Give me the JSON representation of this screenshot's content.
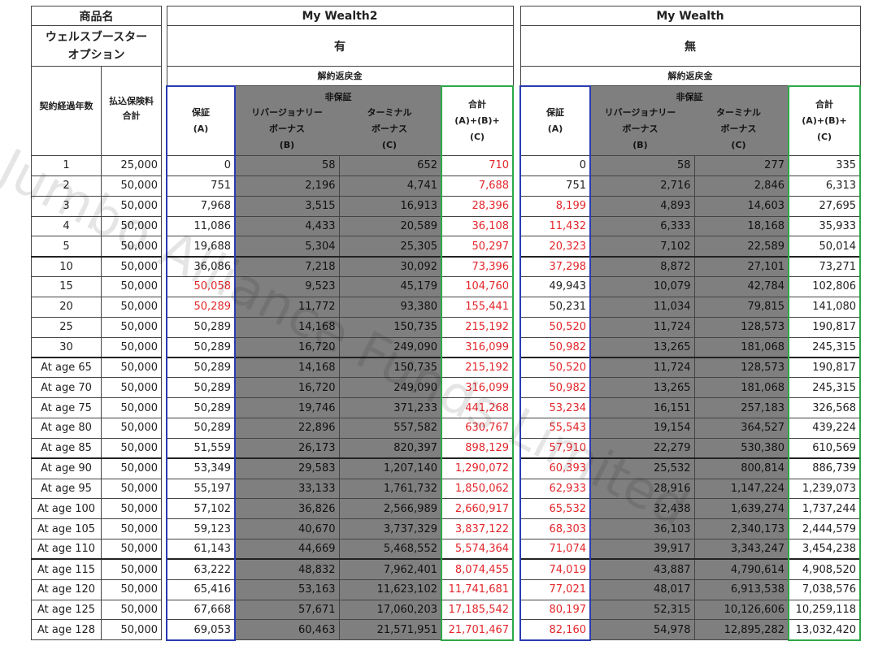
{
  "left": {
    "product_label": "商品名",
    "option_label": "ウェルスブースター\nオプション",
    "year_label": "契約経過年数",
    "paid_label": "払込保険料\n合計",
    "rows": [
      [
        "1",
        "25,000"
      ],
      [
        "2",
        "50,000"
      ],
      [
        "3",
        "50,000"
      ],
      [
        "4",
        "50,000"
      ],
      [
        "5",
        "50,000"
      ],
      [
        "10",
        "50,000"
      ],
      [
        "15",
        "50,000"
      ],
      [
        "20",
        "50,000"
      ],
      [
        "25",
        "50,000"
      ],
      [
        "30",
        "50,000"
      ],
      [
        "At age 65",
        "50,000"
      ],
      [
        "At age 70",
        "50,000"
      ],
      [
        "At age 75",
        "50,000"
      ],
      [
        "At age 80",
        "50,000"
      ],
      [
        "At age 85",
        "50,000"
      ],
      [
        "At age 90",
        "50,000"
      ],
      [
        "At age 95",
        "50,000"
      ],
      [
        "At age 100",
        "50,000"
      ],
      [
        "At age 105",
        "50,000"
      ],
      [
        "At age 110",
        "50,000"
      ],
      [
        "At age 115",
        "50,000"
      ],
      [
        "At age 120",
        "50,000"
      ],
      [
        "At age 125",
        "50,000"
      ],
      [
        "At age 128",
        "50,000"
      ]
    ]
  },
  "products": [
    {
      "name": "My Wealth2",
      "option": "有",
      "surrender_label": "解約返戻金",
      "guaranteed": "保証\n(A)",
      "nonguaranteed": "非保証",
      "reversionary": "リバージョナリー\nボーナス\n(B)",
      "terminal": "ターミナル\nボーナス\n(C)",
      "total": "合計\n(A)+(B)+\n(C)",
      "rows": [
        [
          "0",
          "58",
          "652",
          "710"
        ],
        [
          "751",
          "2,196",
          "4,741",
          "7,688"
        ],
        [
          "7,968",
          "3,515",
          "16,913",
          "28,396"
        ],
        [
          "11,086",
          "4,433",
          "20,589",
          "36,108"
        ],
        [
          "19,688",
          "5,304",
          "25,305",
          "50,297"
        ],
        [
          "36,086",
          "7,218",
          "30,092",
          "73,396"
        ],
        [
          "50,058",
          "9,523",
          "45,179",
          "104,760"
        ],
        [
          "50,289",
          "11,772",
          "93,380",
          "155,441"
        ],
        [
          "50,289",
          "14,168",
          "150,735",
          "215,192"
        ],
        [
          "50,289",
          "16,720",
          "249,090",
          "316,099"
        ],
        [
          "50,289",
          "14,168",
          "150,735",
          "215,192"
        ],
        [
          "50,289",
          "16,720",
          "249,090",
          "316,099"
        ],
        [
          "50,289",
          "19,746",
          "371,233",
          "441,268"
        ],
        [
          "50,289",
          "22,896",
          "557,582",
          "630,767"
        ],
        [
          "51,559",
          "26,173",
          "820,397",
          "898,129"
        ],
        [
          "53,349",
          "29,583",
          "1,207,140",
          "1,290,072"
        ],
        [
          "55,197",
          "33,133",
          "1,761,732",
          "1,850,062"
        ],
        [
          "57,102",
          "36,826",
          "2,566,989",
          "2,660,917"
        ],
        [
          "59,123",
          "40,670",
          "3,737,329",
          "3,837,122"
        ],
        [
          "61,143",
          "44,669",
          "5,468,552",
          "5,574,364"
        ],
        [
          "63,222",
          "48,832",
          "7,962,401",
          "8,074,455"
        ],
        [
          "65,416",
          "53,163",
          "11,623,102",
          "11,741,681"
        ],
        [
          "67,668",
          "57,671",
          "17,060,203",
          "17,185,542"
        ],
        [
          "69,053",
          "60,463",
          "21,571,951",
          "21,701,467"
        ]
      ],
      "red_guaranteed": [
        6,
        7
      ],
      "red_total_all": true
    },
    {
      "name": "My Wealth",
      "option": "無",
      "surrender_label": "解約返戻金",
      "guaranteed": "保証\n(A)",
      "nonguaranteed": "非保証",
      "reversionary": "リバージョナリー\nボーナス\n(B)",
      "terminal": "ターミナル\nボーナス\n(C)",
      "total": "合計\n(A)+(B)+\n(C)",
      "rows": [
        [
          "0",
          "58",
          "277",
          "335"
        ],
        [
          "751",
          "2,716",
          "2,846",
          "6,313"
        ],
        [
          "8,199",
          "4,893",
          "14,603",
          "27,695"
        ],
        [
          "11,432",
          "6,333",
          "18,168",
          "35,933"
        ],
        [
          "20,323",
          "7,102",
          "22,589",
          "50,014"
        ],
        [
          "37,298",
          "8,872",
          "27,101",
          "73,271"
        ],
        [
          "49,943",
          "10,079",
          "42,784",
          "102,806"
        ],
        [
          "50,231",
          "11,034",
          "79,815",
          "141,080"
        ],
        [
          "50,520",
          "11,724",
          "128,573",
          "190,817"
        ],
        [
          "50,982",
          "13,265",
          "181,068",
          "245,315"
        ],
        [
          "50,520",
          "11,724",
          "128,573",
          "190,817"
        ],
        [
          "50,982",
          "13,265",
          "181,068",
          "245,315"
        ],
        [
          "53,234",
          "16,151",
          "257,183",
          "326,568"
        ],
        [
          "55,543",
          "19,154",
          "364,527",
          "439,224"
        ],
        [
          "57,910",
          "22,279",
          "530,380",
          "610,569"
        ],
        [
          "60,393",
          "25,532",
          "800,814",
          "886,739"
        ],
        [
          "62,933",
          "28,916",
          "1,147,224",
          "1,239,073"
        ],
        [
          "65,532",
          "32,438",
          "1,639,274",
          "1,737,244"
        ],
        [
          "68,303",
          "36,103",
          "2,340,173",
          "2,444,579"
        ],
        [
          "71,074",
          "39,917",
          "3,343,247",
          "3,454,238"
        ],
        [
          "74,019",
          "43,887",
          "4,790,614",
          "4,908,520"
        ],
        [
          "77,021",
          "48,017",
          "6,913,538",
          "7,038,576"
        ],
        [
          "80,197",
          "52,315",
          "10,126,606",
          "10,259,118"
        ],
        [
          "82,160",
          "54,978",
          "12,895,282",
          "13,032,420"
        ]
      ],
      "red_guaranteed": [
        2,
        3,
        4,
        5,
        8,
        9,
        10,
        11,
        12,
        13,
        14,
        15,
        16,
        17,
        18,
        19,
        20,
        21,
        22,
        23
      ],
      "red_total_all": false
    }
  ],
  "watermark": "Jumbo Alliance Funds Limited",
  "colors": {
    "gray": "#7f7f7f",
    "red": "#e3262b",
    "blue": "#2a3bb0",
    "green": "#2ea84a"
  }
}
